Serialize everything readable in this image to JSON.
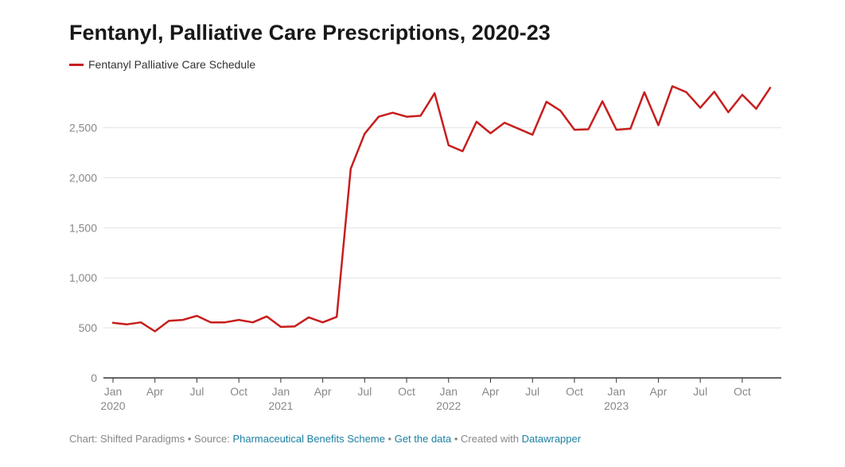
{
  "title": "Fentanyl, Palliative Care Prescriptions, 2020-23",
  "legend": {
    "label": "Fentanyl Palliative Care Schedule",
    "color": "#c71e1d"
  },
  "footer": {
    "prefix": "Chart: Shifted Paradigms • Source: ",
    "source": "Pharmaceutical Benefits Scheme",
    "sep1": " • ",
    "get_data": "Get the data",
    "sep2": " • Created with ",
    "tool": "Datawrapper"
  },
  "chart_data": {
    "type": "line",
    "title": "Fentanyl, Palliative Care Prescriptions, 2020-23",
    "xlabel": "",
    "ylabel": "",
    "ylim": [
      0,
      3000
    ],
    "yticks": [
      0,
      500,
      1000,
      1500,
      2000,
      2500
    ],
    "ytick_labels": [
      "0",
      "500",
      "1,000",
      "1,500",
      "2,000",
      "2,500"
    ],
    "xticks": [
      {
        "index": 0,
        "month": "Jan",
        "year": "2020"
      },
      {
        "index": 3,
        "month": "Apr",
        "year": ""
      },
      {
        "index": 6,
        "month": "Jul",
        "year": ""
      },
      {
        "index": 9,
        "month": "Oct",
        "year": ""
      },
      {
        "index": 12,
        "month": "Jan",
        "year": "2021"
      },
      {
        "index": 15,
        "month": "Apr",
        "year": ""
      },
      {
        "index": 18,
        "month": "Jul",
        "year": ""
      },
      {
        "index": 21,
        "month": "Oct",
        "year": ""
      },
      {
        "index": 24,
        "month": "Jan",
        "year": "2022"
      },
      {
        "index": 27,
        "month": "Apr",
        "year": ""
      },
      {
        "index": 30,
        "month": "Jul",
        "year": ""
      },
      {
        "index": 33,
        "month": "Oct",
        "year": ""
      },
      {
        "index": 36,
        "month": "Jan",
        "year": "2023"
      },
      {
        "index": 39,
        "month": "Apr",
        "year": ""
      },
      {
        "index": 42,
        "month": "Jul",
        "year": ""
      },
      {
        "index": 45,
        "month": "Oct",
        "year": ""
      }
    ],
    "x": [
      "2020-01",
      "2020-02",
      "2020-03",
      "2020-04",
      "2020-05",
      "2020-06",
      "2020-07",
      "2020-08",
      "2020-09",
      "2020-10",
      "2020-11",
      "2020-12",
      "2021-01",
      "2021-02",
      "2021-03",
      "2021-04",
      "2021-05",
      "2021-06",
      "2021-07",
      "2021-08",
      "2021-09",
      "2021-10",
      "2021-11",
      "2021-12",
      "2022-01",
      "2022-02",
      "2022-03",
      "2022-04",
      "2022-05",
      "2022-06",
      "2022-07",
      "2022-08",
      "2022-09",
      "2022-10",
      "2022-11",
      "2022-12",
      "2023-01",
      "2023-02",
      "2023-03",
      "2023-04",
      "2023-05",
      "2023-06",
      "2023-07",
      "2023-08",
      "2023-09",
      "2023-10",
      "2023-11",
      "2023-12"
    ],
    "series": [
      {
        "name": "Fentanyl Palliative Care Schedule",
        "color": "#c71e1d",
        "values": [
          550,
          535,
          555,
          465,
          570,
          580,
          620,
          555,
          555,
          580,
          555,
          615,
          510,
          515,
          605,
          555,
          610,
          2090,
          2440,
          2610,
          2650,
          2610,
          2620,
          2845,
          2325,
          2265,
          2560,
          2445,
          2550,
          2490,
          2430,
          2760,
          2670,
          2480,
          2485,
          2765,
          2480,
          2490,
          2855,
          2525,
          2915,
          2855,
          2700,
          2860,
          2655,
          2830,
          2690,
          2900
        ]
      }
    ],
    "grid": true,
    "legend_position": "top-left"
  }
}
